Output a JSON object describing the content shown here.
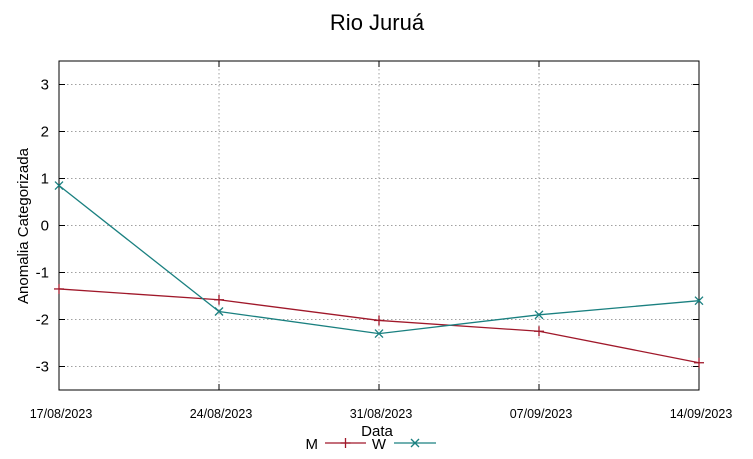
{
  "chart_data": {
    "type": "line",
    "title": "Rio Juruá",
    "xlabel": "Data",
    "ylabel": "Anomalia Categorizada",
    "categories": [
      "17/08/2023",
      "24/08/2023",
      "31/08/2023",
      "07/09/2023",
      "14/09/2023"
    ],
    "yticks": [
      "3",
      "2",
      "1",
      "0",
      "-1",
      "-2",
      "-3"
    ],
    "ylim": [
      -3.5,
      3.5
    ],
    "grid": true,
    "legend_position": "bottom-center",
    "series": [
      {
        "name": "M",
        "color": "#a0182a",
        "marker": "plus",
        "values": [
          -1.35,
          -1.58,
          -2.02,
          -2.25,
          -2.92
        ]
      },
      {
        "name": "W",
        "color": "#1a8080",
        "marker": "cross",
        "values": [
          0.85,
          -1.83,
          -2.3,
          -1.9,
          -1.6
        ]
      }
    ]
  }
}
